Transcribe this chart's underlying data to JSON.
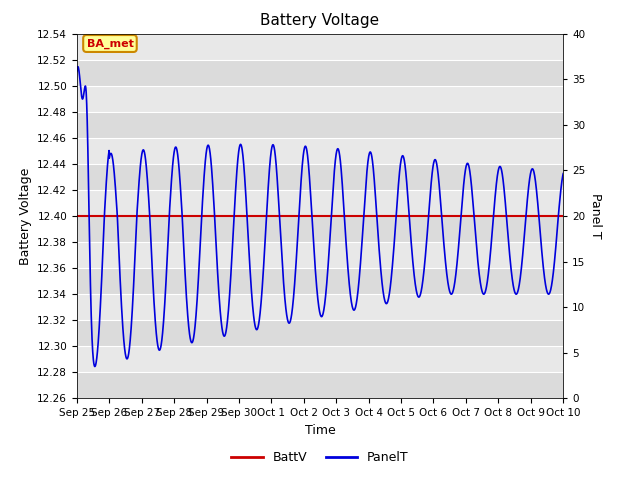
{
  "title": "Battery Voltage",
  "xlabel": "Time",
  "ylabel_left": "Battery Voltage",
  "ylabel_right": "Panel T",
  "ylim_left": [
    12.26,
    12.54
  ],
  "ylim_right": [
    0,
    40
  ],
  "battv_value": 12.4,
  "battv_color": "#cc0000",
  "panelt_color": "#0000dd",
  "bg_color": "#e8e8e8",
  "bg_alt_color": "#d8d8d8",
  "annotation_text": "BA_met",
  "annotation_bg": "#ffff99",
  "annotation_border": "#cc8800",
  "annotation_text_color": "#cc0000",
  "legend_battv": "BattV",
  "legend_panelt": "PanelT",
  "tick_dates": [
    "Sep 25",
    "Sep 26",
    "Sep 27",
    "Sep 28",
    "Sep 29",
    "Sep 30",
    "Oct 1",
    "Oct 2",
    "Oct 3",
    "Oct 4",
    "Oct 5",
    "Oct 6",
    "Oct 7",
    "Oct 8",
    "Oct 9",
    "Oct 10"
  ],
  "yticks_left": [
    12.26,
    12.28,
    12.3,
    12.32,
    12.34,
    12.36,
    12.38,
    12.4,
    12.42,
    12.44,
    12.46,
    12.48,
    12.5,
    12.52,
    12.54
  ],
  "yticks_right": [
    0,
    5,
    10,
    15,
    20,
    25,
    30,
    35,
    40
  ],
  "figsize": [
    6.4,
    4.8
  ],
  "dpi": 100
}
